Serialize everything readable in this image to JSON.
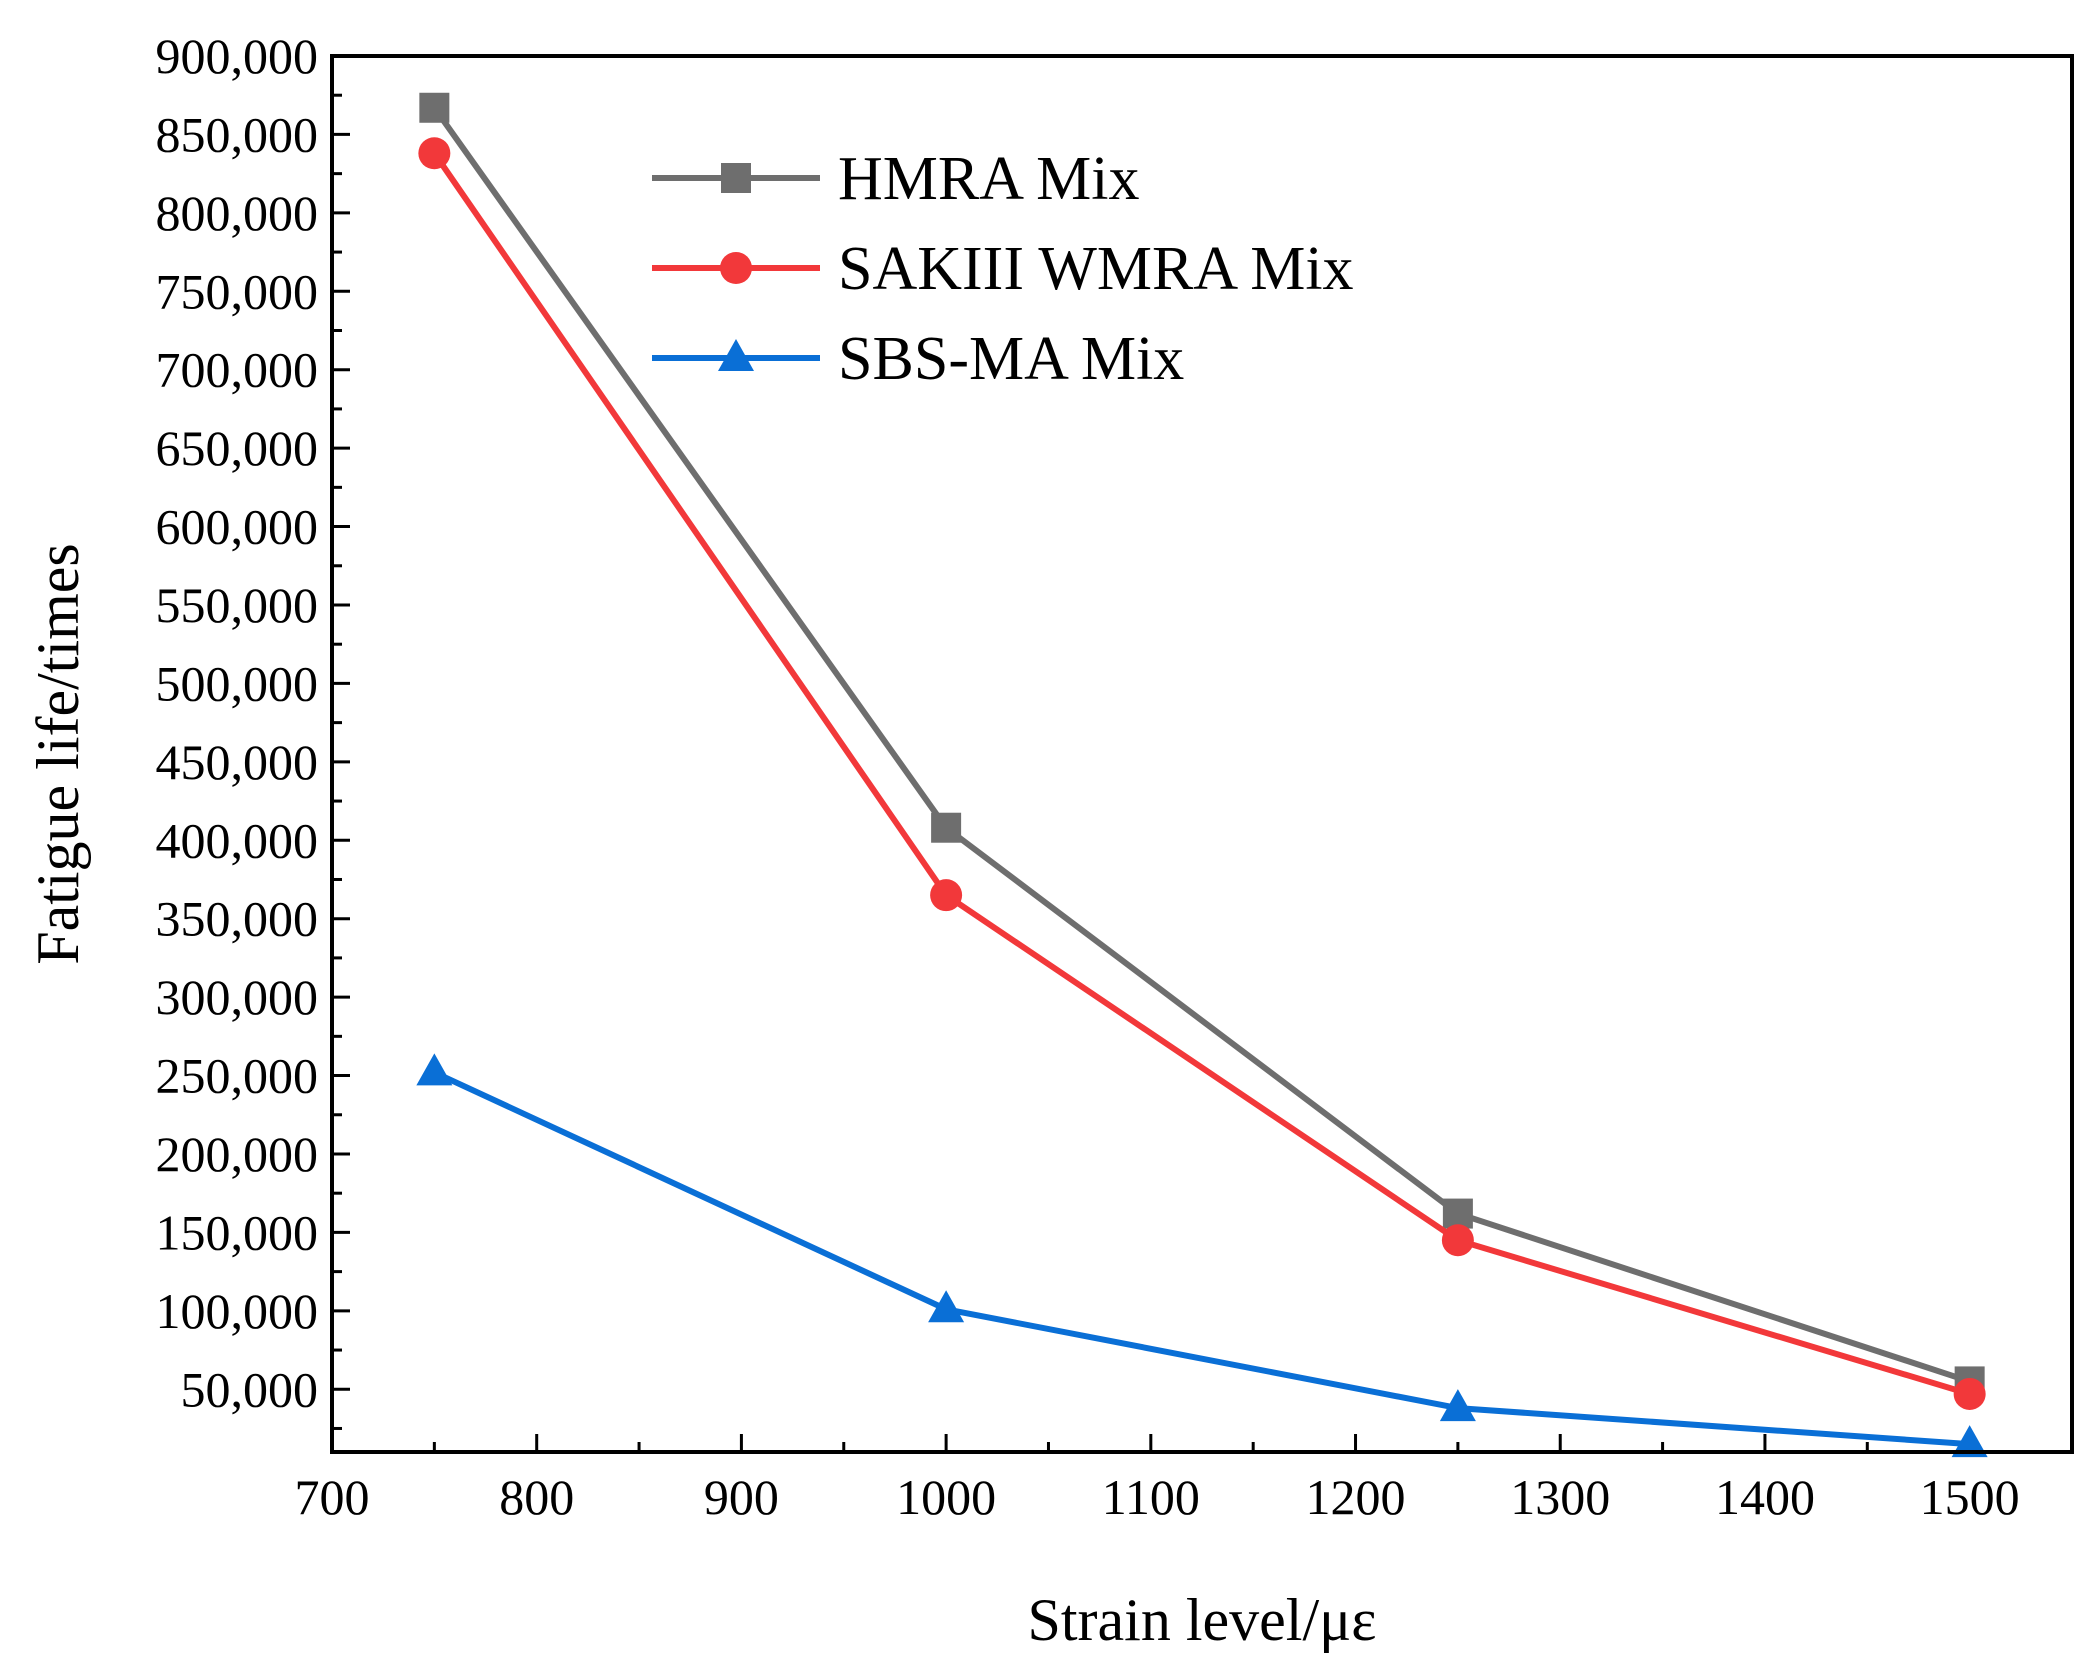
{
  "chart_data": {
    "type": "line",
    "title": "",
    "xlabel": "Strain level/με",
    "ylabel": "Fatigue life/times",
    "xlim": [
      700,
      1550
    ],
    "ylim": [
      10000,
      900000
    ],
    "x_ticks": [
      700,
      800,
      900,
      1000,
      1100,
      1200,
      1300,
      1400,
      1500
    ],
    "x_tick_labels": [
      "700",
      "800",
      "900",
      "1000",
      "1100",
      "1200",
      "1300",
      "1400",
      "1500"
    ],
    "y_ticks": [
      50000,
      100000,
      150000,
      200000,
      250000,
      300000,
      350000,
      400000,
      450000,
      500000,
      550000,
      600000,
      650000,
      700000,
      750000,
      800000,
      850000,
      900000
    ],
    "y_tick_labels": [
      "50,000",
      "100,000",
      "150,000",
      "200,000",
      "250,000",
      "300,000",
      "350,000",
      "400,000",
      "450,000",
      "500,000",
      "550,000",
      "600,000",
      "650,000",
      "700,000",
      "750,000",
      "800,000",
      "850,000",
      "900,000"
    ],
    "grid": false,
    "legend_position": "top-center",
    "x": [
      750,
      1000,
      1250,
      1500
    ],
    "series": [
      {
        "name": "HMRA Mix",
        "color": "#6e6e6e",
        "marker": "square",
        "values": [
          867000,
          408000,
          162000,
          55000
        ]
      },
      {
        "name": "SAKIII WMRA Mix",
        "color": "#f2383a",
        "marker": "circle",
        "values": [
          838000,
          365000,
          145000,
          47000
        ]
      },
      {
        "name": "SBS-MA Mix",
        "color": "#0a6fd6",
        "marker": "triangle",
        "values": [
          252000,
          101000,
          38000,
          15000
        ]
      }
    ]
  }
}
